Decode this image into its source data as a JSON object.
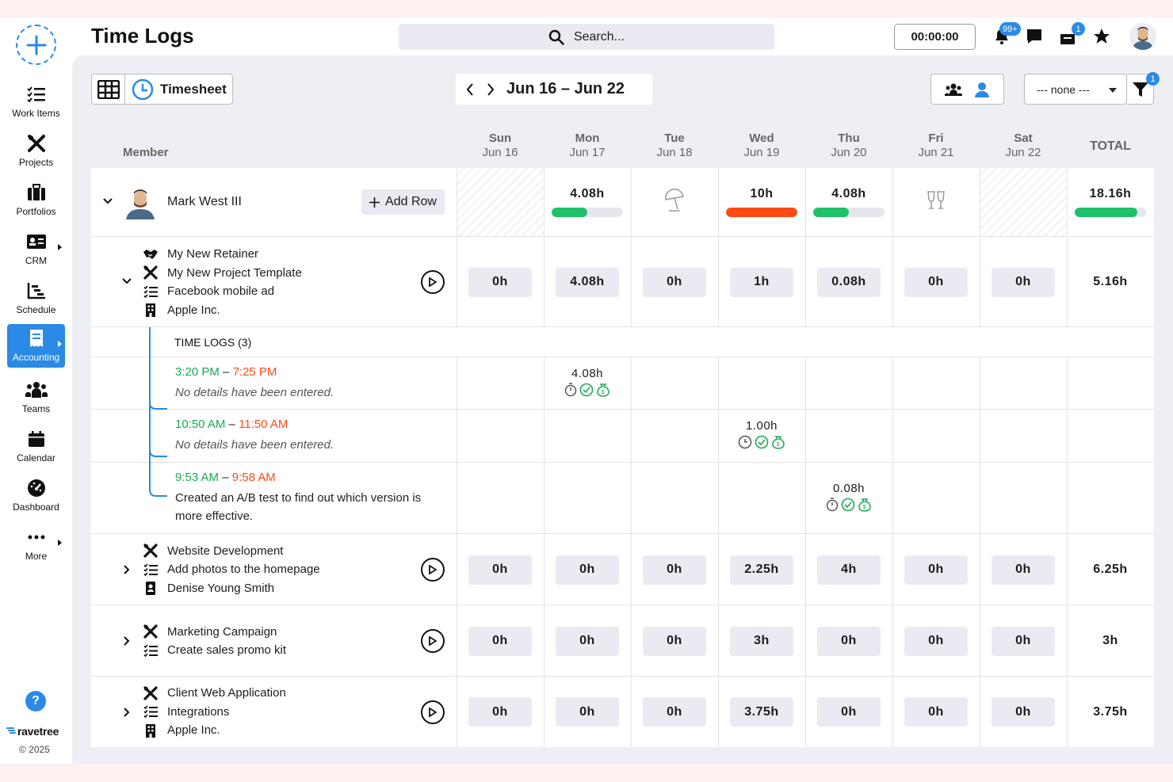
{
  "header": {
    "title": "Time Logs",
    "search_placeholder": "Search...",
    "timer": "00:00:00",
    "notif_badge": "99+",
    "inbox_badge": "1"
  },
  "sidebar": {
    "items": [
      {
        "label": "Work Items",
        "icon": "checklist-icon"
      },
      {
        "label": "Projects",
        "icon": "tools-icon"
      },
      {
        "label": "Portfolios",
        "icon": "briefcase-icon"
      },
      {
        "label": "CRM",
        "icon": "id-card-icon"
      },
      {
        "label": "Schedule",
        "icon": "gantt-icon"
      },
      {
        "label": "Accounting",
        "icon": "receipt-icon",
        "active": true
      },
      {
        "label": "Teams",
        "icon": "team-icon"
      },
      {
        "label": "Calendar",
        "icon": "calendar-icon"
      },
      {
        "label": "Dashboard",
        "icon": "gauge-icon"
      },
      {
        "label": "More",
        "icon": "dots-icon"
      }
    ],
    "help": "?",
    "brand": "ravetree",
    "copyright": "© 2025"
  },
  "toolbar": {
    "view_label": "Timesheet",
    "date_range": "Jun 16 – Jun 22",
    "select_value": "--- none ---",
    "filter_badge": "1"
  },
  "columns": {
    "member": "Member",
    "total": "TOTAL",
    "days": [
      {
        "name": "Sun",
        "date": "Jun 16"
      },
      {
        "name": "Mon",
        "date": "Jun 17"
      },
      {
        "name": "Tue",
        "date": "Jun 18"
      },
      {
        "name": "Wed",
        "date": "Jun 19"
      },
      {
        "name": "Thu",
        "date": "Jun 20"
      },
      {
        "name": "Fri",
        "date": "Jun 21"
      },
      {
        "name": "Sat",
        "date": "Jun 22"
      }
    ]
  },
  "member": {
    "name": "Mark West III",
    "add_row": "Add Row",
    "days": [
      "",
      "4.08h",
      "",
      "10h",
      "4.08h",
      "",
      ""
    ],
    "progress": [
      null,
      0.5,
      null,
      1.0,
      0.5,
      null,
      null
    ],
    "total": "18.16h",
    "total_progress": 0.88,
    "colors": {
      "green": "#1fc16b",
      "red": "#ff4a14"
    }
  },
  "tasks": [
    {
      "lines": [
        {
          "icon": "handshake-icon",
          "text": "My New Retainer"
        },
        {
          "icon": "tools-icon",
          "text": "My New Project Template"
        },
        {
          "icon": "checklist-icon",
          "text": "Facebook mobile ad"
        },
        {
          "icon": "building-icon",
          "text": "Apple Inc."
        }
      ],
      "hours": [
        "0h",
        "4.08h",
        "0h",
        "1h",
        "0.08h",
        "0h",
        "0h"
      ],
      "total": "5.16h"
    },
    {
      "lines": [
        {
          "icon": "tools-icon",
          "text": "Website Development"
        },
        {
          "icon": "checklist-icon",
          "text": "Add photos to the homepage"
        },
        {
          "icon": "contact-icon",
          "text": "Denise Young Smith"
        }
      ],
      "hours": [
        "0h",
        "0h",
        "0h",
        "2.25h",
        "4h",
        "0h",
        "0h"
      ],
      "total": "6.25h"
    },
    {
      "lines": [
        {
          "icon": "tools-icon",
          "text": "Marketing Campaign"
        },
        {
          "icon": "checklist-icon",
          "text": "Create sales promo kit"
        }
      ],
      "hours": [
        "0h",
        "0h",
        "0h",
        "3h",
        "0h",
        "0h",
        "0h"
      ],
      "total": "3h"
    },
    {
      "lines": [
        {
          "icon": "tools-icon",
          "text": "Client Web Application"
        },
        {
          "icon": "checklist-icon",
          "text": "Integrations"
        },
        {
          "icon": "building-icon",
          "text": "Apple Inc."
        }
      ],
      "hours": [
        "0h",
        "0h",
        "0h",
        "3.75h",
        "0h",
        "0h",
        "0h"
      ],
      "total": "3.75h"
    }
  ],
  "timelogs": {
    "header": "TIME LOGS (3)",
    "entries": [
      {
        "start": "3:20 PM",
        "end": "7:25 PM",
        "note": "No details have been entered.",
        "value": "4.08h",
        "day": "Mon"
      },
      {
        "start": "10:50 AM",
        "end": "11:50 AM",
        "note": "No details have been entered.",
        "value": "1.00h",
        "day": "Wed"
      },
      {
        "start": "9:53 AM",
        "end": "9:58 AM",
        "note": "Created an A/B test to find out which version is more effective.",
        "value": "0.08h",
        "day": "Thu"
      }
    ]
  }
}
